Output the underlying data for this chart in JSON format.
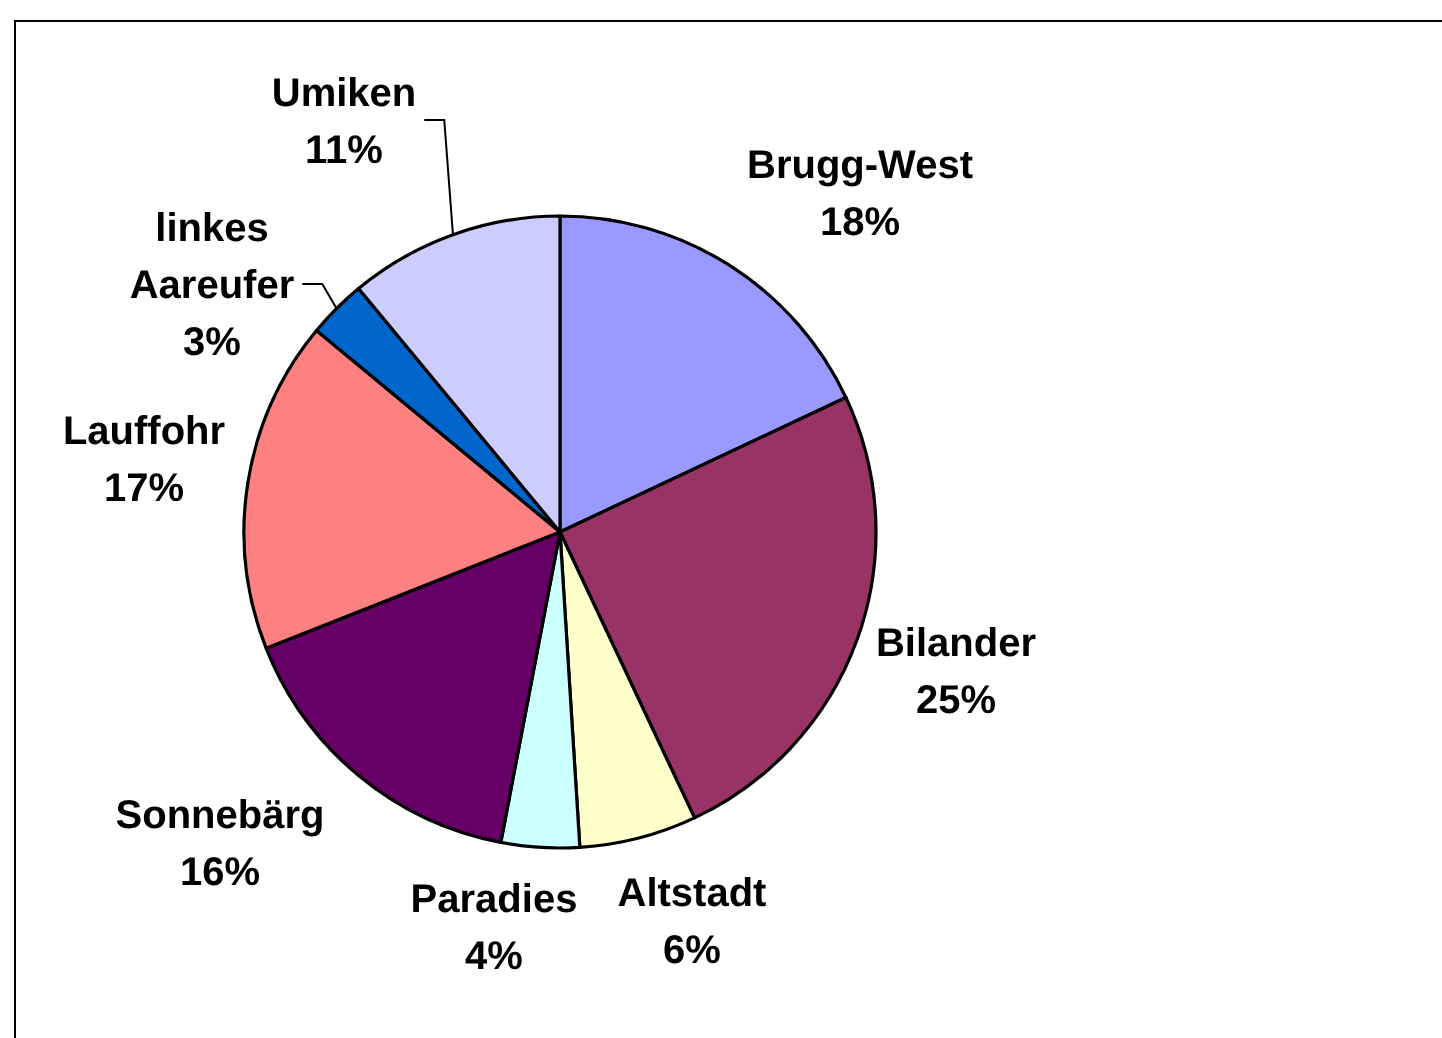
{
  "chart_data": {
    "type": "pie",
    "categories": [
      "Brugg-West",
      "Bilander",
      "Altstadt",
      "Paradies",
      "Sonnebärg",
      "Lauffohr",
      "linkes Aareufer",
      "Umiken"
    ],
    "values": [
      18,
      25,
      6,
      4,
      16,
      17,
      3,
      11
    ],
    "value_labels": [
      "18%",
      "25%",
      "6%",
      "4%",
      "16%",
      "17%",
      "3%",
      "11%"
    ],
    "colors": [
      "#9999ff",
      "#993366",
      "#ffffcc",
      "#ccffff",
      "#660066",
      "#ff8080",
      "#0066cc",
      "#ccccff"
    ]
  }
}
